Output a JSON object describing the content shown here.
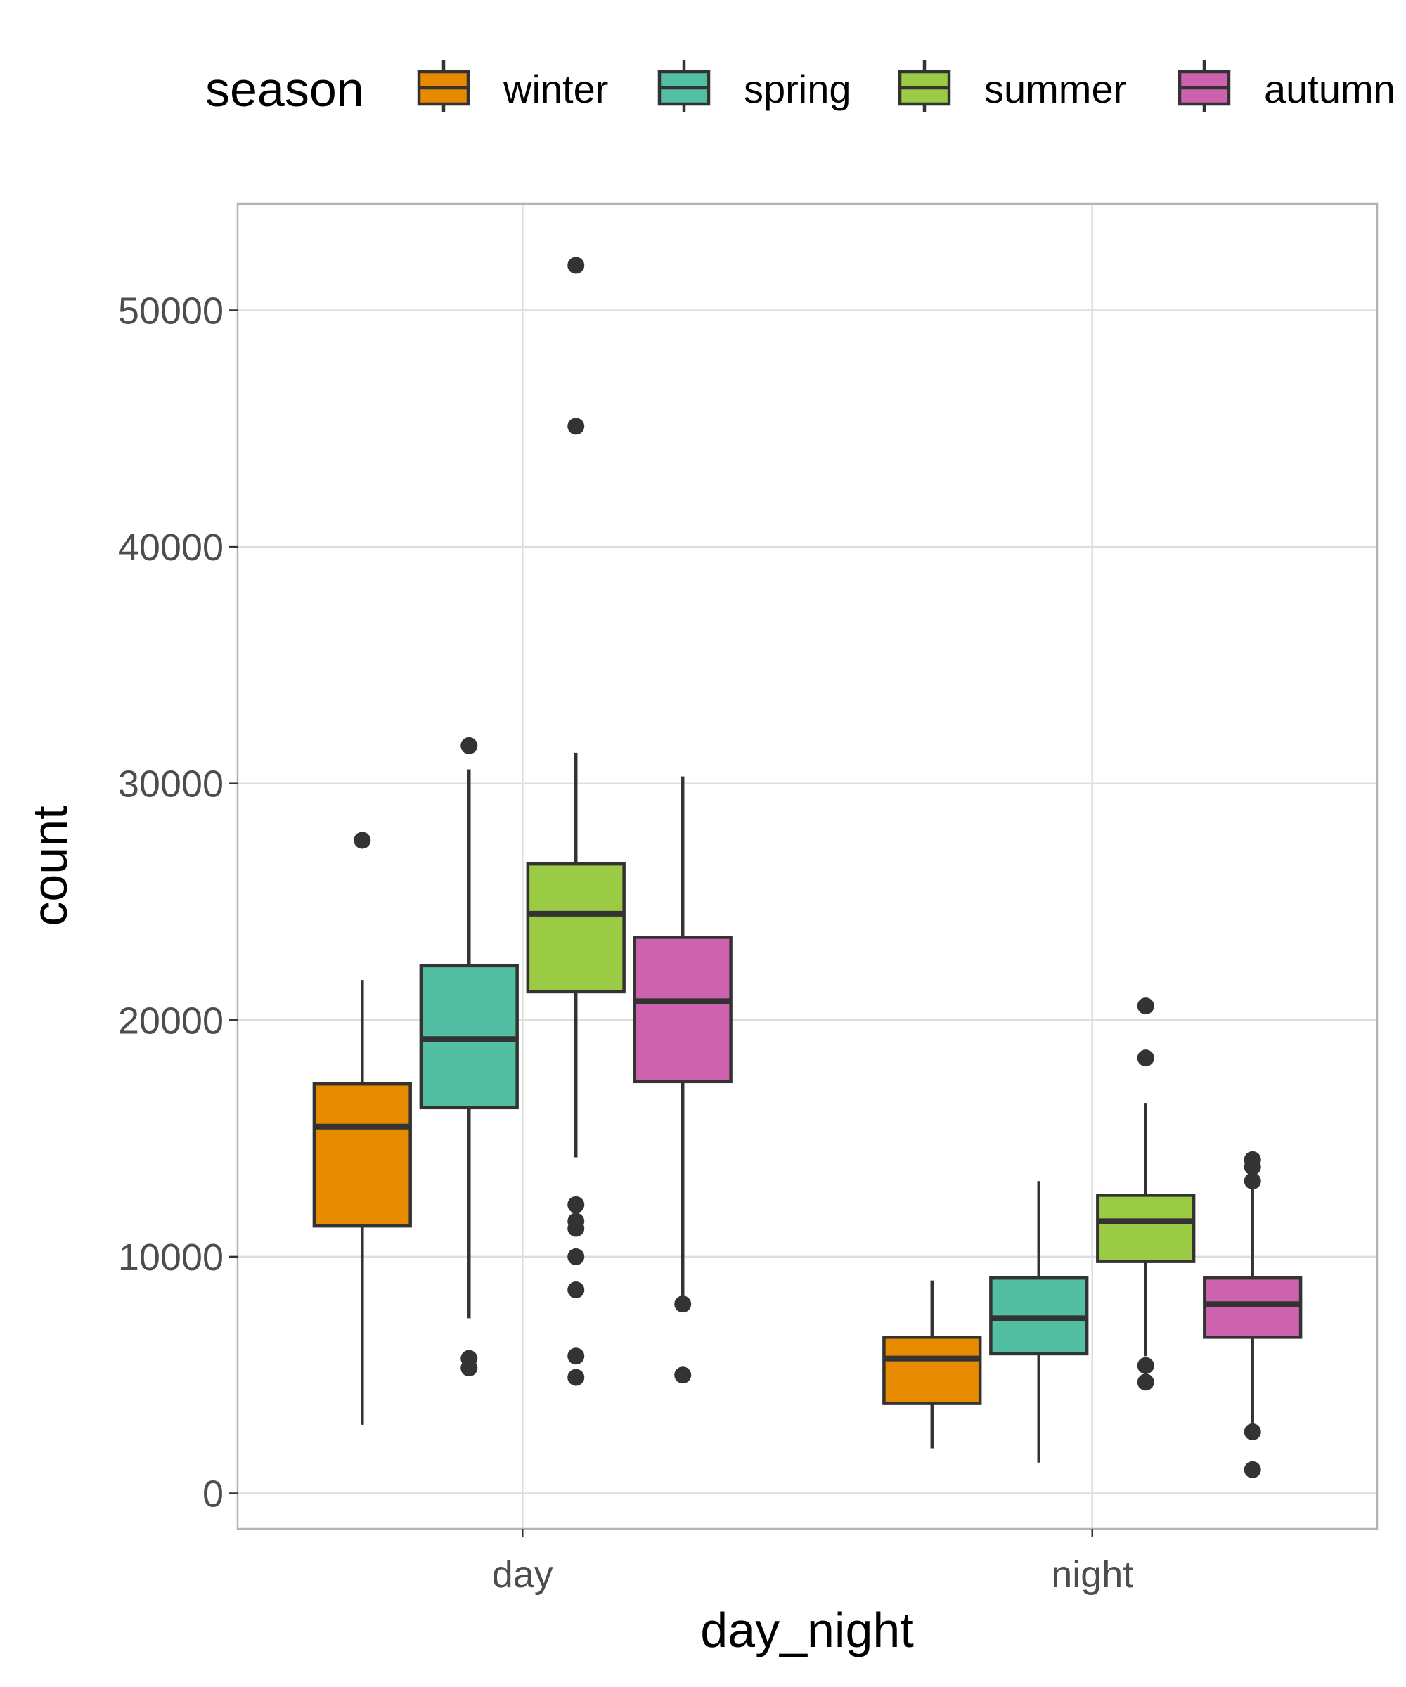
{
  "chart_data": {
    "type": "boxplot",
    "xlabel": "day_night",
    "ylabel": "count",
    "ylim": [
      -1500,
      54500
    ],
    "yticks": [
      0,
      10000,
      20000,
      30000,
      40000,
      50000
    ],
    "ytick_labels": [
      "0",
      "10000",
      "20000",
      "30000",
      "40000",
      "50000"
    ],
    "categories": [
      "day",
      "night"
    ],
    "grid": true,
    "legend": {
      "title": "season",
      "position": "top",
      "entries": [
        "winter",
        "spring",
        "summer",
        "autumn"
      ]
    },
    "series": [
      {
        "name": "winter",
        "color": "#E68A00",
        "boxes": [
          {
            "category": "day",
            "whisker_low": 2900,
            "q1": 11300,
            "median": 15500,
            "q3": 17300,
            "whisker_high": 21700,
            "outliers": [
              27600
            ]
          },
          {
            "category": "night",
            "whisker_low": 1900,
            "q1": 3800,
            "median": 5700,
            "q3": 6600,
            "whisker_high": 9000,
            "outliers": []
          }
        ]
      },
      {
        "name": "spring",
        "color": "#52BFA2",
        "boxes": [
          {
            "category": "day",
            "whisker_low": 7400,
            "q1": 16300,
            "median": 19200,
            "q3": 22300,
            "whisker_high": 30600,
            "outliers": [
              31600,
              5700,
              5300
            ]
          },
          {
            "category": "night",
            "whisker_low": 1300,
            "q1": 5900,
            "median": 7400,
            "q3": 9100,
            "whisker_high": 13200,
            "outliers": []
          }
        ]
      },
      {
        "name": "summer",
        "color": "#9BCB45",
        "boxes": [
          {
            "category": "day",
            "whisker_low": 14200,
            "q1": 21200,
            "median": 24500,
            "q3": 26600,
            "whisker_high": 31300,
            "outliers": [
              51900,
              45100,
              12200,
              11500,
              11200,
              10000,
              8600,
              5800,
              4900
            ]
          },
          {
            "category": "night",
            "whisker_low": 5800,
            "q1": 9800,
            "median": 11500,
            "q3": 12600,
            "whisker_high": 16500,
            "outliers": [
              20600,
              18400,
              5400,
              4700
            ]
          }
        ]
      },
      {
        "name": "autumn",
        "color": "#CD63AE",
        "boxes": [
          {
            "category": "day",
            "whisker_low": 8200,
            "q1": 17400,
            "median": 20800,
            "q3": 23500,
            "whisker_high": 30300,
            "outliers": [
              8000,
              5000
            ]
          },
          {
            "category": "night",
            "whisker_low": 2900,
            "q1": 6600,
            "median": 8000,
            "q3": 9100,
            "whisker_high": 12900,
            "outliers": [
              14100,
              13800,
              13200,
              2600,
              1000
            ]
          }
        ]
      }
    ]
  }
}
